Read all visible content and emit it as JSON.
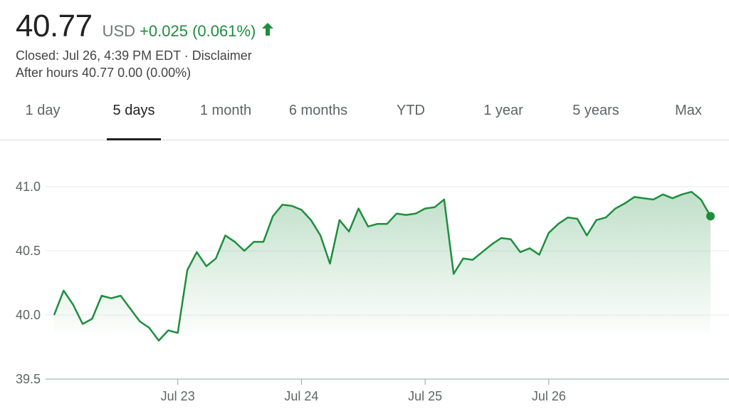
{
  "quote": {
    "price": "40.77",
    "currency": "USD",
    "change": "+0.025 (0.061%)",
    "change_icon": "arrow-up-icon",
    "closed_text": "Closed: Jul 26, 4:39 PM EDT · Disclaimer",
    "after_hours_text": "After hours 40.77 0.00 (0.00%)"
  },
  "colors": {
    "up": "#1e8e3e",
    "grid": "#e8eaed",
    "axis": "#5f6368"
  },
  "tabs": [
    {
      "label": "1 day",
      "active": false
    },
    {
      "label": "5 days",
      "active": true
    },
    {
      "label": "1 month",
      "active": false
    },
    {
      "label": "6 months",
      "active": false
    },
    {
      "label": "YTD",
      "active": false
    },
    {
      "label": "1 year",
      "active": false
    },
    {
      "label": "5 years",
      "active": false
    },
    {
      "label": "Max",
      "active": false
    }
  ],
  "chart_data": {
    "type": "area",
    "title": "",
    "xlabel": "",
    "ylabel": "",
    "ylim": [
      39.5,
      41.0
    ],
    "yticks": [
      41.0,
      40.5,
      40.0,
      39.5
    ],
    "ytick_labels": [
      "41.0",
      "40.5",
      "40.0",
      "39.5"
    ],
    "x_tick_labels": [
      {
        "label": "Jul 23",
        "index": 13
      },
      {
        "label": "Jul 24",
        "index": 26
      },
      {
        "label": "Jul 25",
        "index": 39
      },
      {
        "label": "Jul 26",
        "index": 52
      }
    ],
    "grid": true,
    "series": [
      {
        "values": [
          40.0,
          40.19,
          40.08,
          39.93,
          39.97,
          40.15,
          40.13,
          40.15,
          40.05,
          39.95,
          39.9,
          39.8,
          39.88,
          39.86,
          40.35,
          40.49,
          40.38,
          40.44,
          40.62,
          40.57,
          40.5,
          40.57,
          40.57,
          40.77,
          40.86,
          40.85,
          40.82,
          40.74,
          40.62,
          40.4,
          40.74,
          40.65,
          40.83,
          40.69,
          40.71,
          40.71,
          40.79,
          40.78,
          40.79,
          40.83,
          40.84,
          40.9,
          40.32,
          40.44,
          40.43,
          40.49,
          40.55,
          40.6,
          40.59,
          40.49,
          40.52,
          40.47,
          40.64,
          40.71,
          40.76,
          40.75,
          40.62,
          40.74,
          40.76,
          40.83,
          40.87,
          40.92,
          40.91,
          40.9,
          40.94,
          40.91,
          40.94,
          40.96,
          40.9,
          40.77
        ]
      }
    ],
    "last_value": 40.77
  }
}
